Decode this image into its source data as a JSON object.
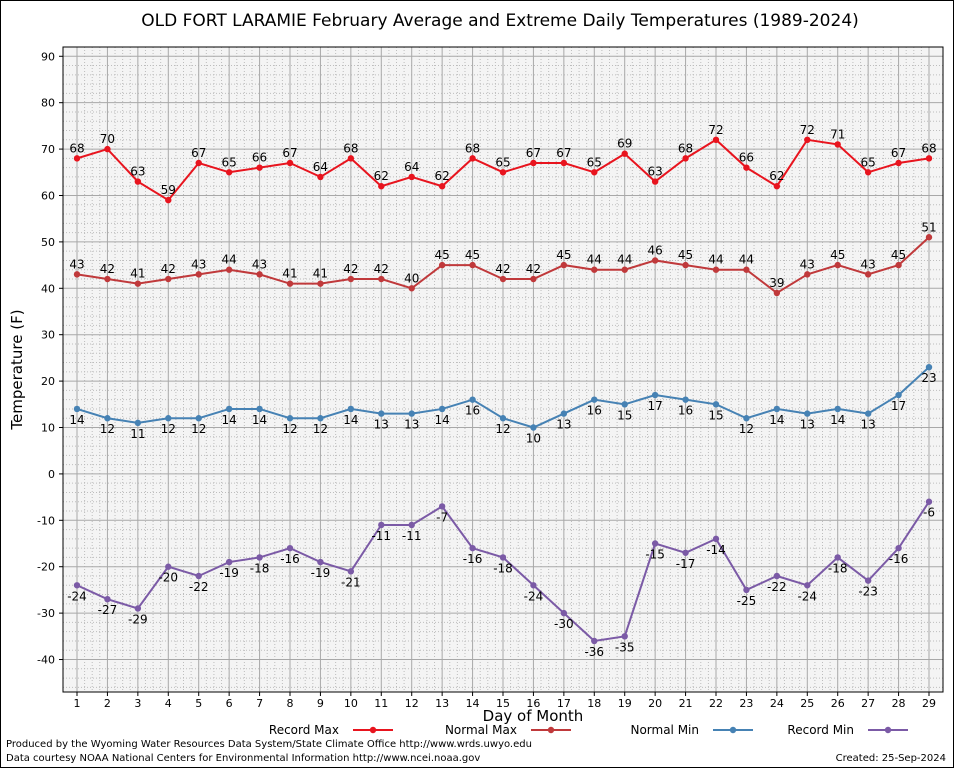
{
  "chart_data": {
    "type": "line",
    "title": "OLD FORT LARAMIE February Average and Extreme Daily Temperatures (1989-2024)",
    "xlabel": "Day of Month",
    "ylabel": "Temperature (F)",
    "ylim": [
      -47,
      92
    ],
    "y_ticks": [
      -40,
      -30,
      -20,
      -10,
      0,
      10,
      20,
      30,
      40,
      50,
      60,
      70,
      80,
      90
    ],
    "x": [
      1,
      2,
      3,
      4,
      5,
      6,
      7,
      8,
      9,
      10,
      11,
      12,
      13,
      14,
      15,
      16,
      17,
      18,
      19,
      20,
      21,
      22,
      23,
      24,
      25,
      26,
      27,
      28,
      29
    ],
    "grid": true,
    "legend_position": "bottom",
    "series": [
      {
        "name": "Record Max",
        "color": "#e8141e",
        "label_pos": "above",
        "values": [
          68,
          70,
          63,
          59,
          67,
          65,
          66,
          67,
          64,
          68,
          62,
          64,
          62,
          68,
          65,
          67,
          67,
          65,
          69,
          63,
          68,
          72,
          66,
          62,
          72,
          71,
          65,
          67,
          68
        ]
      },
      {
        "name": "Normal Max",
        "color": "#c0393b",
        "label_pos": "above",
        "values": [
          43,
          42,
          41,
          42,
          43,
          44,
          43,
          41,
          41,
          42,
          42,
          40,
          45,
          45,
          42,
          42,
          45,
          44,
          44,
          46,
          45,
          44,
          44,
          39,
          43,
          45,
          43,
          45,
          51
        ]
      },
      {
        "name": "Normal Min",
        "color": "#4682b4",
        "label_pos": "below",
        "values": [
          14,
          12,
          11,
          12,
          12,
          14,
          14,
          12,
          12,
          14,
          13,
          13,
          14,
          16,
          12,
          10,
          13,
          16,
          15,
          17,
          16,
          15,
          12,
          14,
          13,
          14,
          13,
          17,
          23
        ]
      },
      {
        "name": "Record Min",
        "color": "#7b5aa6",
        "label_pos": "below",
        "values": [
          -24,
          -27,
          -29,
          -20,
          -22,
          -19,
          -18,
          -16,
          -19,
          -21,
          -11,
          -11,
          -7,
          -16,
          -18,
          -24,
          -30,
          -36,
          -35,
          -15,
          -17,
          -14,
          -25,
          -22,
          -24,
          -18,
          -23,
          -16,
          -6
        ]
      }
    ]
  },
  "footer": {
    "produced_by": "Produced by the Wyoming Water Resources Data System/State Climate Office http://www.wrds.uwyo.edu",
    "data_courtesy": "Data courtesy NOAA National Centers for Environmental Information http://www.ncei.noaa.gov",
    "created": "Created: 25-Sep-2024"
  }
}
